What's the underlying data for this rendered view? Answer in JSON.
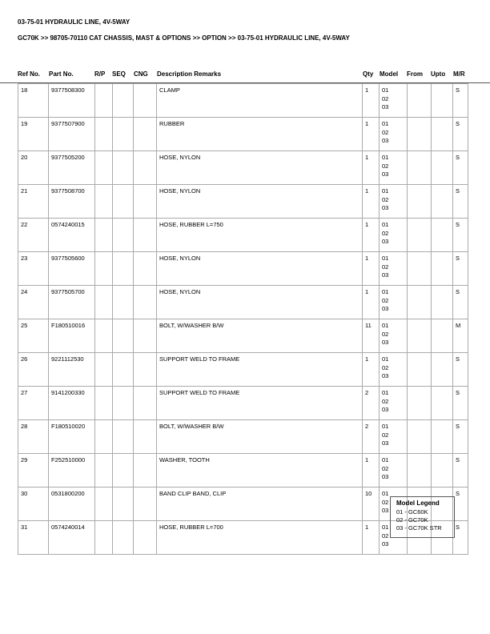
{
  "title": "03-75-01 HYDRAULIC LINE, 4V-5WAY",
  "breadcrumb": "GC70K >> 98705-70110 CAT CHASSIS, MAST & OPTIONS >> OPTION >> 03-75-01 HYDRAULIC LINE, 4V-5WAY",
  "columns": [
    "Ref No.",
    "Part No.",
    "R/P",
    "SEQ",
    "CNG",
    "Description Remarks",
    "Qty",
    "Model",
    "From",
    "Upto",
    "M/R"
  ],
  "rows": [
    {
      "ref": "18",
      "part": "9377508300",
      "desc": "CLAMP",
      "qty": "1",
      "models": [
        "01",
        "02",
        "03"
      ],
      "mr": "S"
    },
    {
      "ref": "19",
      "part": "9377507900",
      "desc": "RUBBER",
      "qty": "1",
      "models": [
        "01",
        "02",
        "03"
      ],
      "mr": "S"
    },
    {
      "ref": "20",
      "part": "9377505200",
      "desc": "HOSE, NYLON",
      "qty": "1",
      "models": [
        "01",
        "02",
        "03"
      ],
      "mr": "S"
    },
    {
      "ref": "21",
      "part": "9377508700",
      "desc": "HOSE, NYLON",
      "qty": "1",
      "models": [
        "01",
        "02",
        "03"
      ],
      "mr": "S"
    },
    {
      "ref": "22",
      "part": "0574240015",
      "desc": "HOSE, RUBBER L=750",
      "qty": "1",
      "models": [
        "01",
        "02",
        "03"
      ],
      "mr": "S"
    },
    {
      "ref": "23",
      "part": "9377505600",
      "desc": "HOSE, NYLON",
      "qty": "1",
      "models": [
        "01",
        "02",
        "03"
      ],
      "mr": "S"
    },
    {
      "ref": "24",
      "part": "9377505700",
      "desc": "HOSE, NYLON",
      "qty": "1",
      "models": [
        "01",
        "02",
        "03"
      ],
      "mr": "S"
    },
    {
      "ref": "25",
      "part": "F180510016",
      "desc": "BOLT, W/WASHER B/W",
      "qty": "11",
      "models": [
        "01",
        "02",
        "03"
      ],
      "mr": "M"
    },
    {
      "ref": "26",
      "part": "9221112530",
      "desc": "SUPPORT WELD TO FRAME",
      "qty": "1",
      "models": [
        "01",
        "02",
        "03"
      ],
      "mr": "S"
    },
    {
      "ref": "27",
      "part": "9141200330",
      "desc": "SUPPORT WELD TO FRAME",
      "qty": "2",
      "models": [
        "01",
        "02",
        "03"
      ],
      "mr": "S"
    },
    {
      "ref": "28",
      "part": "F180510020",
      "desc": "BOLT, W/WASHER B/W",
      "qty": "2",
      "models": [
        "01",
        "02",
        "03"
      ],
      "mr": "S"
    },
    {
      "ref": "29",
      "part": "F252510000",
      "desc": "WASHER, TOOTH",
      "qty": "1",
      "models": [
        "01",
        "02",
        "03"
      ],
      "mr": "S"
    },
    {
      "ref": "30",
      "part": "0531800200",
      "desc": "BAND CLIP BAND, CLIP",
      "qty": "10",
      "models": [
        "01",
        "02",
        "03"
      ],
      "mr": "S"
    },
    {
      "ref": "31",
      "part": "0574240014",
      "desc": "HOSE, RUBBER L=700",
      "qty": "1",
      "models": [
        "01",
        "02",
        "03"
      ],
      "mr": "S"
    }
  ],
  "legend": {
    "title": "Model Legend",
    "items": [
      "01 - GC60K",
      "02 - GC70K",
      "03 - GC70K STR"
    ]
  }
}
